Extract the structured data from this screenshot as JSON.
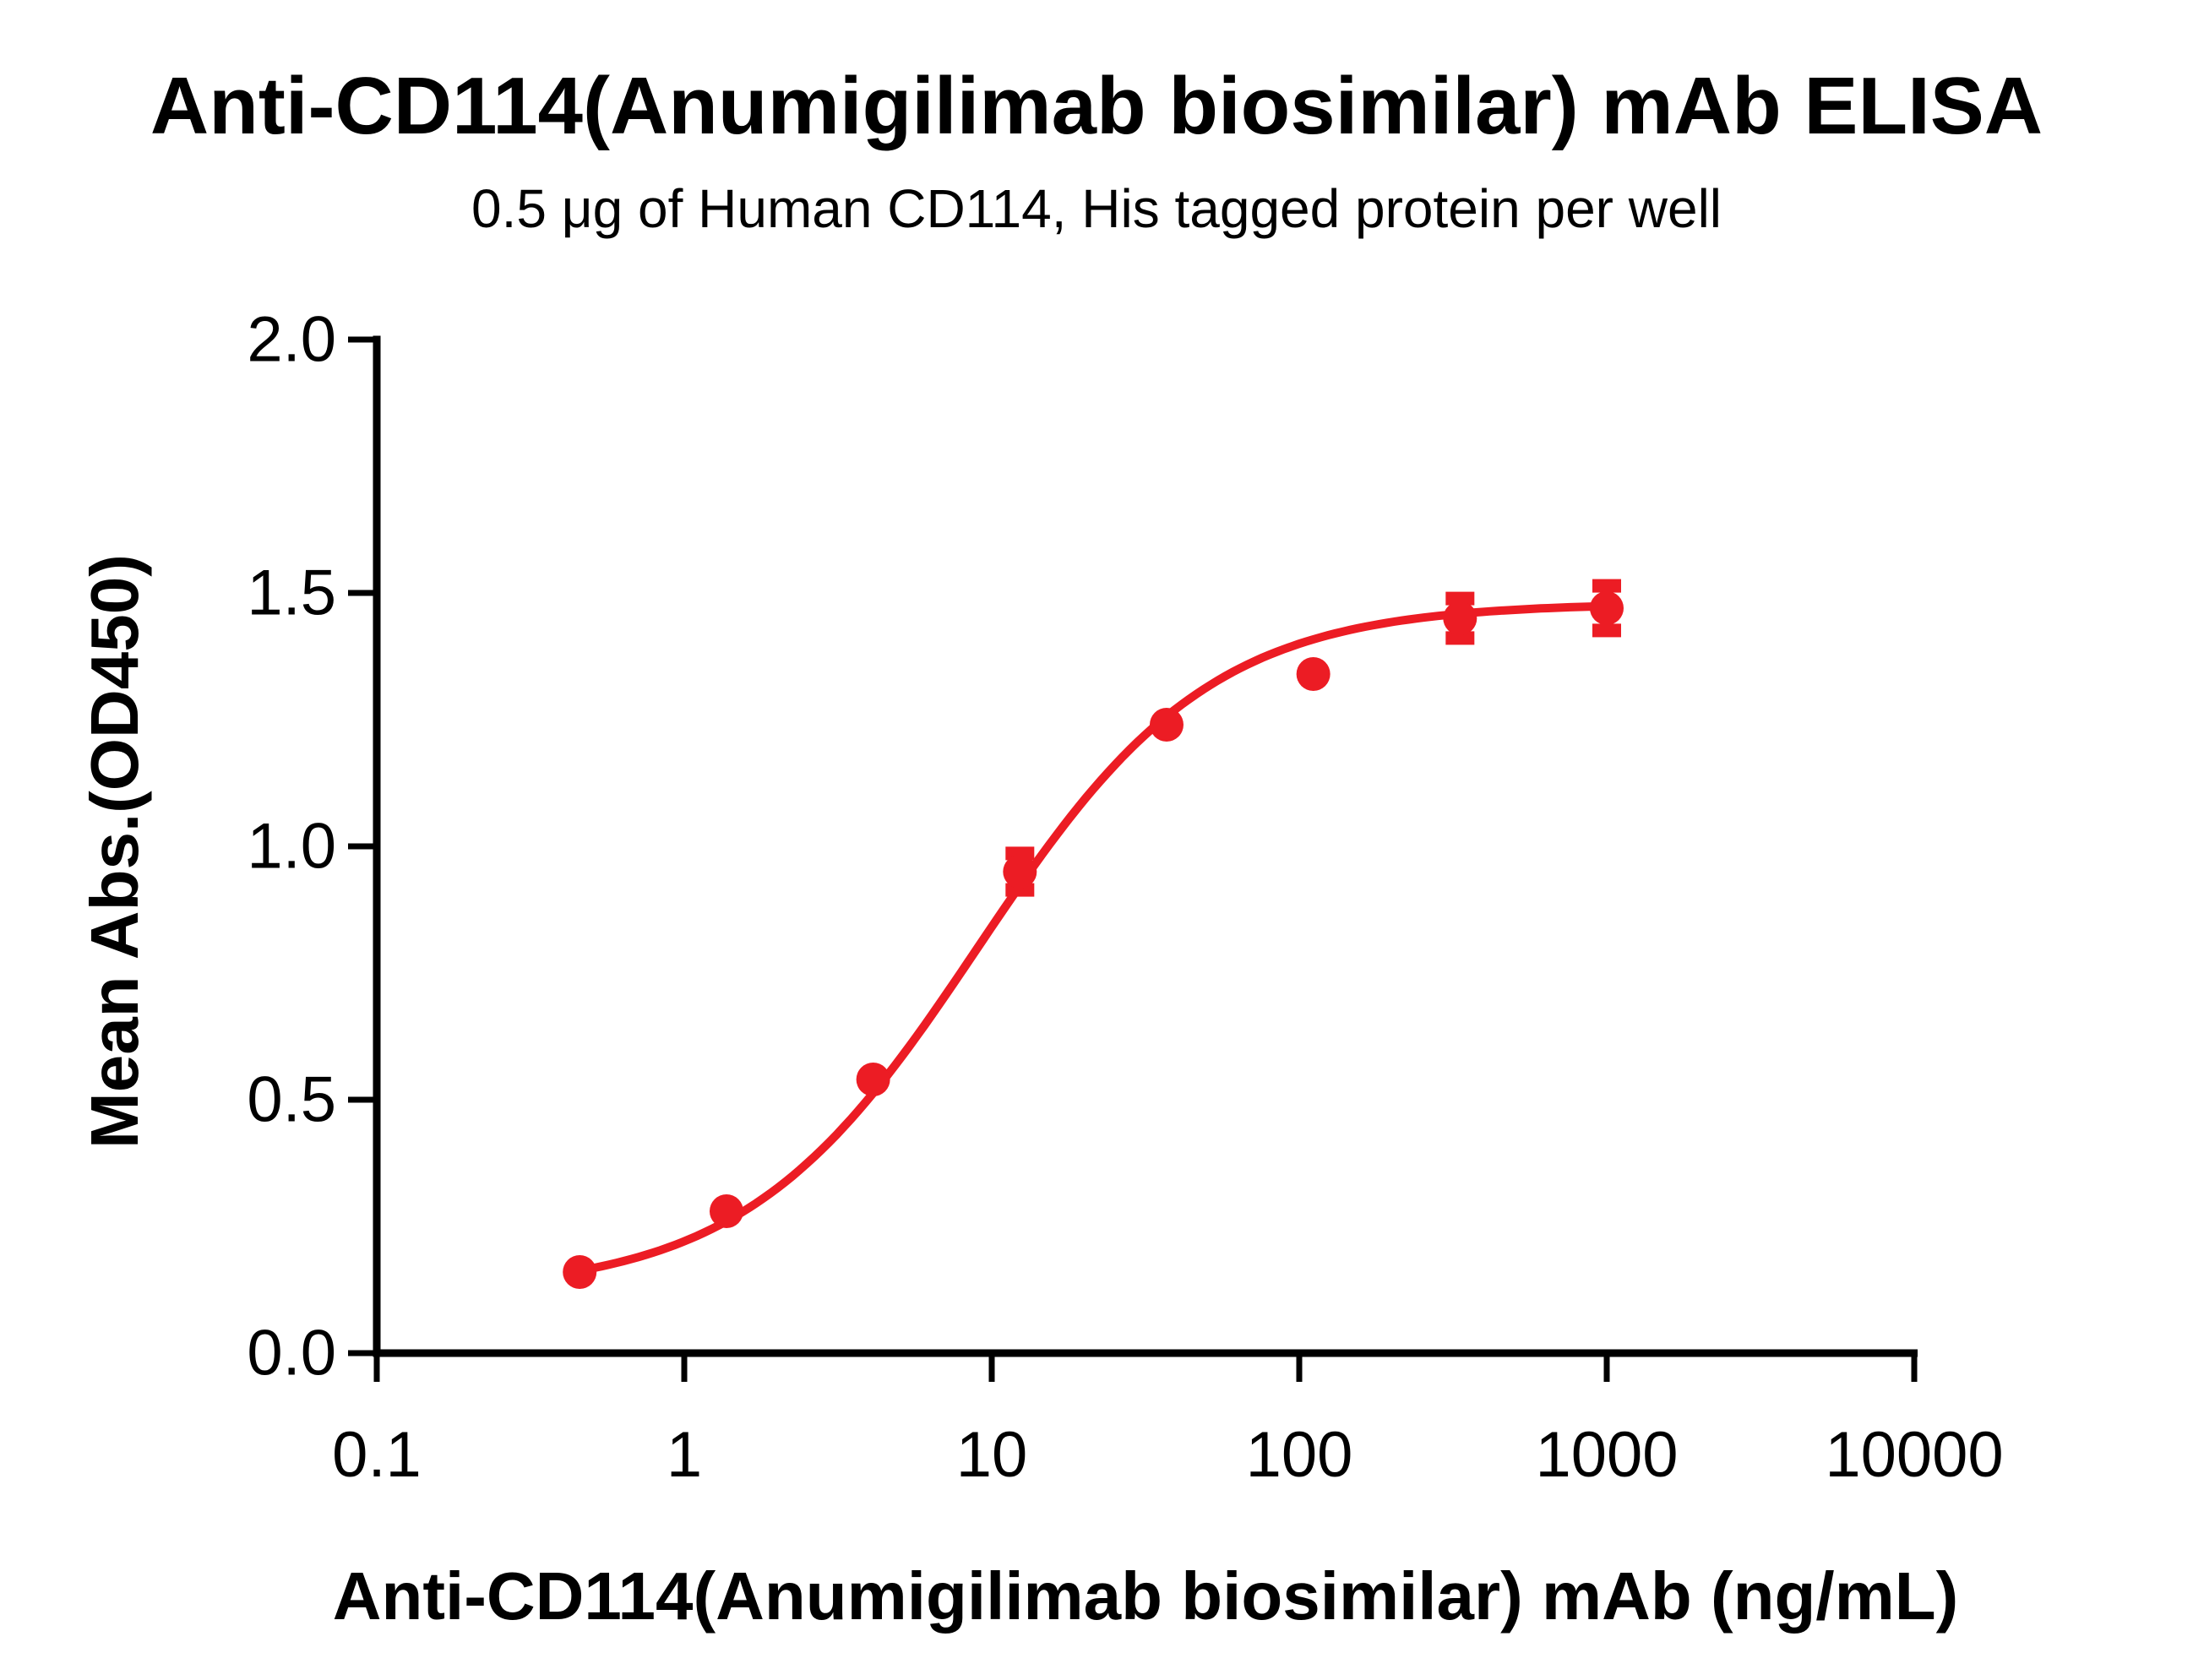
{
  "accent_color": "#EC1C24",
  "axis_color": "#000000",
  "background_color": "#FFFFFF",
  "chart_data": {
    "type": "scatter",
    "title": "Anti-CD114(Anumigilimab biosimilar) mAb ELISA",
    "subtitle": "0.5 μg of Human CD114, His tagged protein per well",
    "xlabel": "Anti-CD114(Anumigilimab biosimilar) mAb (ng/mL)",
    "ylabel": "Mean Abs.(OD450)",
    "x_scale": "log10",
    "xlim": [
      0.1,
      10000
    ],
    "ylim": [
      0.0,
      2.0
    ],
    "x_ticks": [
      "0.1",
      "1",
      "10",
      "100",
      "1000",
      "10000"
    ],
    "y_ticks": [
      "0.0",
      "0.5",
      "1.0",
      "1.5",
      "2.0"
    ],
    "grid": false,
    "legend": "none",
    "series": [
      {
        "name": "Anti-CD114(Anumigilimab biosimilar) mAb",
        "marker": "circle",
        "color": "#EC1C24",
        "x": [
          0.457,
          1.372,
          4.115,
          12.346,
          37.037,
          111.111,
          333.333,
          1000
        ],
        "y": [
          0.16,
          0.28,
          0.54,
          0.95,
          1.24,
          1.34,
          1.45,
          1.47
        ],
        "sd": [
          0,
          0,
          0,
          0.036,
          0,
          0,
          0.039,
          0.044
        ]
      }
    ],
    "fit": {
      "model": "4PL",
      "bottom": 0.12,
      "top": 1.48,
      "ec50": 9.0,
      "hill": 1.15,
      "range": [
        0.457,
        1000
      ]
    }
  }
}
